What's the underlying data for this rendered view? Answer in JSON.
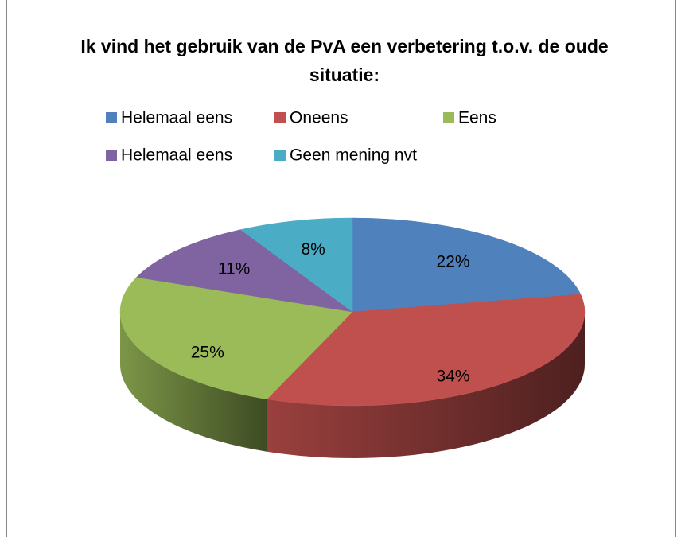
{
  "chart_data": {
    "type": "pie3d",
    "title": "Ik vind het gebruik van de PvA een verbetering t.o.v. de oude situatie:",
    "categories": [
      "Helemaal eens",
      "Oneens",
      "Eens",
      "Helemaal eens",
      "Geen mening nvt"
    ],
    "values": [
      22,
      34,
      25,
      11,
      8
    ],
    "value_labels": [
      "22%",
      "34%",
      "25%",
      "11%",
      "8%"
    ],
    "colors": [
      "#4f81bd",
      "#c0504d",
      "#9bbb59",
      "#8064a2",
      "#4bacc6"
    ],
    "legend": "top"
  }
}
